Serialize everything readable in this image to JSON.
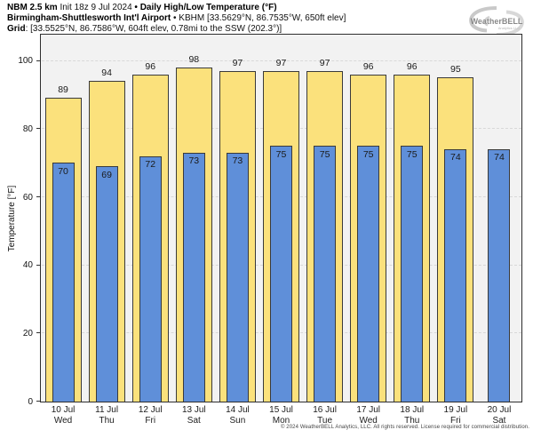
{
  "header": {
    "model": "NBM 2.5 km",
    "init": " Init 18z 9 Jul 2024 ",
    "product": "• Daily High/Low Temperature (°F)",
    "station": "Birmingham-Shuttlesworth Int'l Airport",
    "station_info": " • KBHM [33.5629°N, 86.7535°W, 650ft elev]",
    "grid_label": "Grid",
    "grid_info": ": [33.5525°N, 86.7586°W, 604ft elev, 0.78mi to the SSW (202.3°)]"
  },
  "logo": {
    "brand": "WeatherBELL",
    "sub": "Analytics LLC"
  },
  "chart_data": {
    "type": "bar",
    "title": "NBM 2.5 km Daily High/Low Temperature (°F) — Birmingham-Shuttlesworth Int'l Airport (KBHM)",
    "categories": [
      "10 Jul",
      "11 Jul",
      "12 Jul",
      "13 Jul",
      "14 Jul",
      "15 Jul",
      "16 Jul",
      "17 Jul",
      "18 Jul",
      "19 Jul",
      "20 Jul"
    ],
    "weekdays": [
      "Wed",
      "Thu",
      "Fri",
      "Sat",
      "Sun",
      "Mon",
      "Tue",
      "Wed",
      "Thu",
      "Fri",
      "Sat"
    ],
    "series": [
      {
        "name": "High",
        "color": "#FBE17C",
        "values": [
          89,
          94,
          96,
          98,
          97,
          97,
          97,
          96,
          96,
          95,
          null
        ]
      },
      {
        "name": "Low",
        "color": "#5F8FD9",
        "values": [
          70,
          69,
          72,
          73,
          73,
          75,
          75,
          75,
          75,
          74,
          74
        ]
      }
    ],
    "xlabel": "",
    "ylabel": "Temperature [°F]",
    "yticks": [
      0,
      20,
      40,
      60,
      80,
      100
    ],
    "ylim": [
      0,
      107.5
    ],
    "grid": true,
    "legend_position": "none"
  },
  "palette": {
    "high_fill": "#FBE17C",
    "low_fill": "#5F8FD9",
    "bar_border": "#3A3A3A",
    "plot_bg": "#F2F2F2",
    "gridline": "#D8D8D8"
  },
  "footer": {
    "copyright": "© 2024 WeatherBELL Analytics, LLC. All rights reserved. License required for commercial distribution."
  }
}
